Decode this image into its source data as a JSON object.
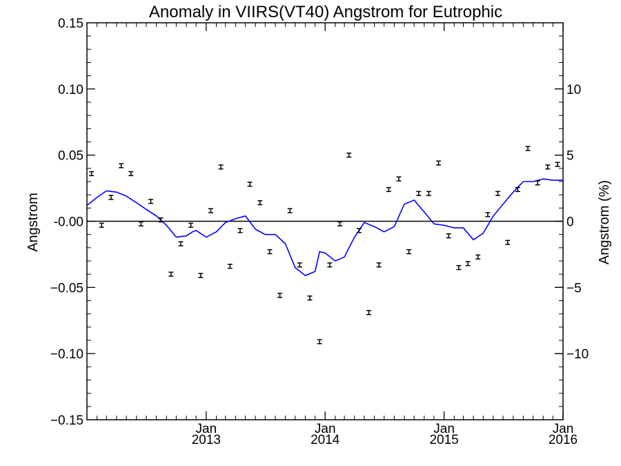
{
  "chart_data": {
    "type": "scatter",
    "title": "Anomaly in VIIRS(VT40) Angstrom for Eutrophic",
    "ylabel": "Angstrom",
    "ylabel_right": "Angstrom (%)",
    "xlabel": "",
    "xlim": [
      "2012-01-01",
      "2016-01-01"
    ],
    "ylim": [
      -0.15,
      0.15
    ],
    "ylim_right": [
      -15,
      15
    ],
    "x_ticks": [
      {
        "date": "2013-01-01",
        "month": "Jan",
        "year": "2013"
      },
      {
        "date": "2014-01-01",
        "month": "Jan",
        "year": "2014"
      },
      {
        "date": "2015-01-01",
        "month": "Jan",
        "year": "2015"
      },
      {
        "date": "2016-01-01",
        "month": "Jan",
        "year": "2016"
      }
    ],
    "y_ticks": [
      "0.15",
      "0.10",
      "0.05",
      "-0.00",
      "−0.05",
      "−0.10",
      "−0.15"
    ],
    "y_tick_values": [
      0.15,
      0.1,
      0.05,
      0.0,
      -0.05,
      -0.1,
      -0.15
    ],
    "y_ticks_right": [
      "10",
      "5",
      "0",
      "−5",
      "−10"
    ],
    "y_tick_values_right": [
      10,
      5,
      0,
      -5,
      -10
    ],
    "zero_line": true,
    "grid": false,
    "colors": {
      "points": "#000000",
      "line": "#0000ff",
      "axes": "#000000"
    },
    "series": [
      {
        "kind": "points_with_errorbars",
        "x": [
          "2012-01-15",
          "2012-02-15",
          "2012-03-15",
          "2012-04-15",
          "2012-05-15",
          "2012-06-15",
          "2012-07-15",
          "2012-08-15",
          "2012-09-15",
          "2012-10-15",
          "2012-11-15",
          "2012-12-15",
          "2013-01-15",
          "2013-02-15",
          "2013-03-15",
          "2013-04-15",
          "2013-05-15",
          "2013-06-15",
          "2013-07-15",
          "2013-08-15",
          "2013-09-15",
          "2013-10-15",
          "2013-11-15",
          "2013-12-15",
          "2014-01-15",
          "2014-02-15",
          "2014-03-15",
          "2014-04-15",
          "2014-05-15",
          "2014-06-15",
          "2014-07-15",
          "2014-08-15",
          "2014-09-15",
          "2014-10-15",
          "2014-11-15",
          "2014-12-15",
          "2015-01-15",
          "2015-02-15",
          "2015-03-15",
          "2015-04-15",
          "2015-05-15",
          "2015-06-15",
          "2015-07-15",
          "2015-08-15",
          "2015-09-15",
          "2015-10-15",
          "2015-11-15",
          "2015-12-15"
        ],
        "y": [
          0.036,
          -0.003,
          0.018,
          0.042,
          0.036,
          -0.002,
          0.015,
          0.001,
          -0.04,
          -0.017,
          -0.003,
          -0.041,
          0.008,
          0.041,
          -0.034,
          -0.007,
          0.028,
          0.014,
          -0.023,
          -0.056,
          0.008,
          -0.033,
          -0.058,
          -0.091,
          -0.033,
          -0.002,
          0.05,
          -0.007,
          -0.069,
          -0.033,
          0.024,
          0.032,
          -0.023,
          0.021,
          0.021,
          0.044,
          -0.011,
          -0.035,
          -0.032,
          -0.027,
          0.005,
          0.021,
          -0.016,
          0.024,
          0.055,
          0.029,
          0.041,
          0.043
        ],
        "error": 0.0015
      },
      {
        "kind": "smoothed_line",
        "x": [
          "2012-01-01",
          "2012-02-01",
          "2012-03-01",
          "2012-04-01",
          "2012-05-01",
          "2012-06-01",
          "2012-07-01",
          "2012-08-01",
          "2012-09-01",
          "2012-10-01",
          "2012-11-01",
          "2012-11-20",
          "2012-12-01",
          "2013-01-01",
          "2013-02-01",
          "2013-03-01",
          "2013-04-01",
          "2013-05-01",
          "2013-06-01",
          "2013-07-01",
          "2013-08-01",
          "2013-09-01",
          "2013-10-01",
          "2013-11-01",
          "2013-12-01",
          "2013-12-15",
          "2014-01-01",
          "2014-02-01",
          "2014-03-01",
          "2014-04-01",
          "2014-05-01",
          "2014-06-01",
          "2014-07-01",
          "2014-08-01",
          "2014-09-01",
          "2014-10-01",
          "2014-11-01",
          "2014-12-01",
          "2015-01-01",
          "2015-02-01",
          "2015-03-01",
          "2015-04-01",
          "2015-05-01",
          "2015-06-01",
          "2015-07-01",
          "2015-08-01",
          "2015-09-01",
          "2015-10-01",
          "2015-11-01",
          "2015-12-01",
          "2016-01-01"
        ],
        "y": [
          0.012,
          0.018,
          0.023,
          0.022,
          0.019,
          0.014,
          0.009,
          0.004,
          -0.003,
          -0.012,
          -0.011,
          -0.008,
          -0.007,
          -0.012,
          -0.008,
          -0.001,
          0.002,
          0.004,
          -0.006,
          -0.01,
          -0.01,
          -0.017,
          -0.035,
          -0.041,
          -0.038,
          -0.023,
          -0.024,
          -0.03,
          -0.027,
          -0.012,
          -0.001,
          -0.004,
          -0.008,
          -0.004,
          0.013,
          0.016,
          0.007,
          -0.002,
          -0.003,
          -0.005,
          -0.005,
          -0.014,
          -0.009,
          0.004,
          0.013,
          0.022,
          0.03,
          0.03,
          0.032,
          0.031,
          0.031
        ]
      }
    ]
  }
}
